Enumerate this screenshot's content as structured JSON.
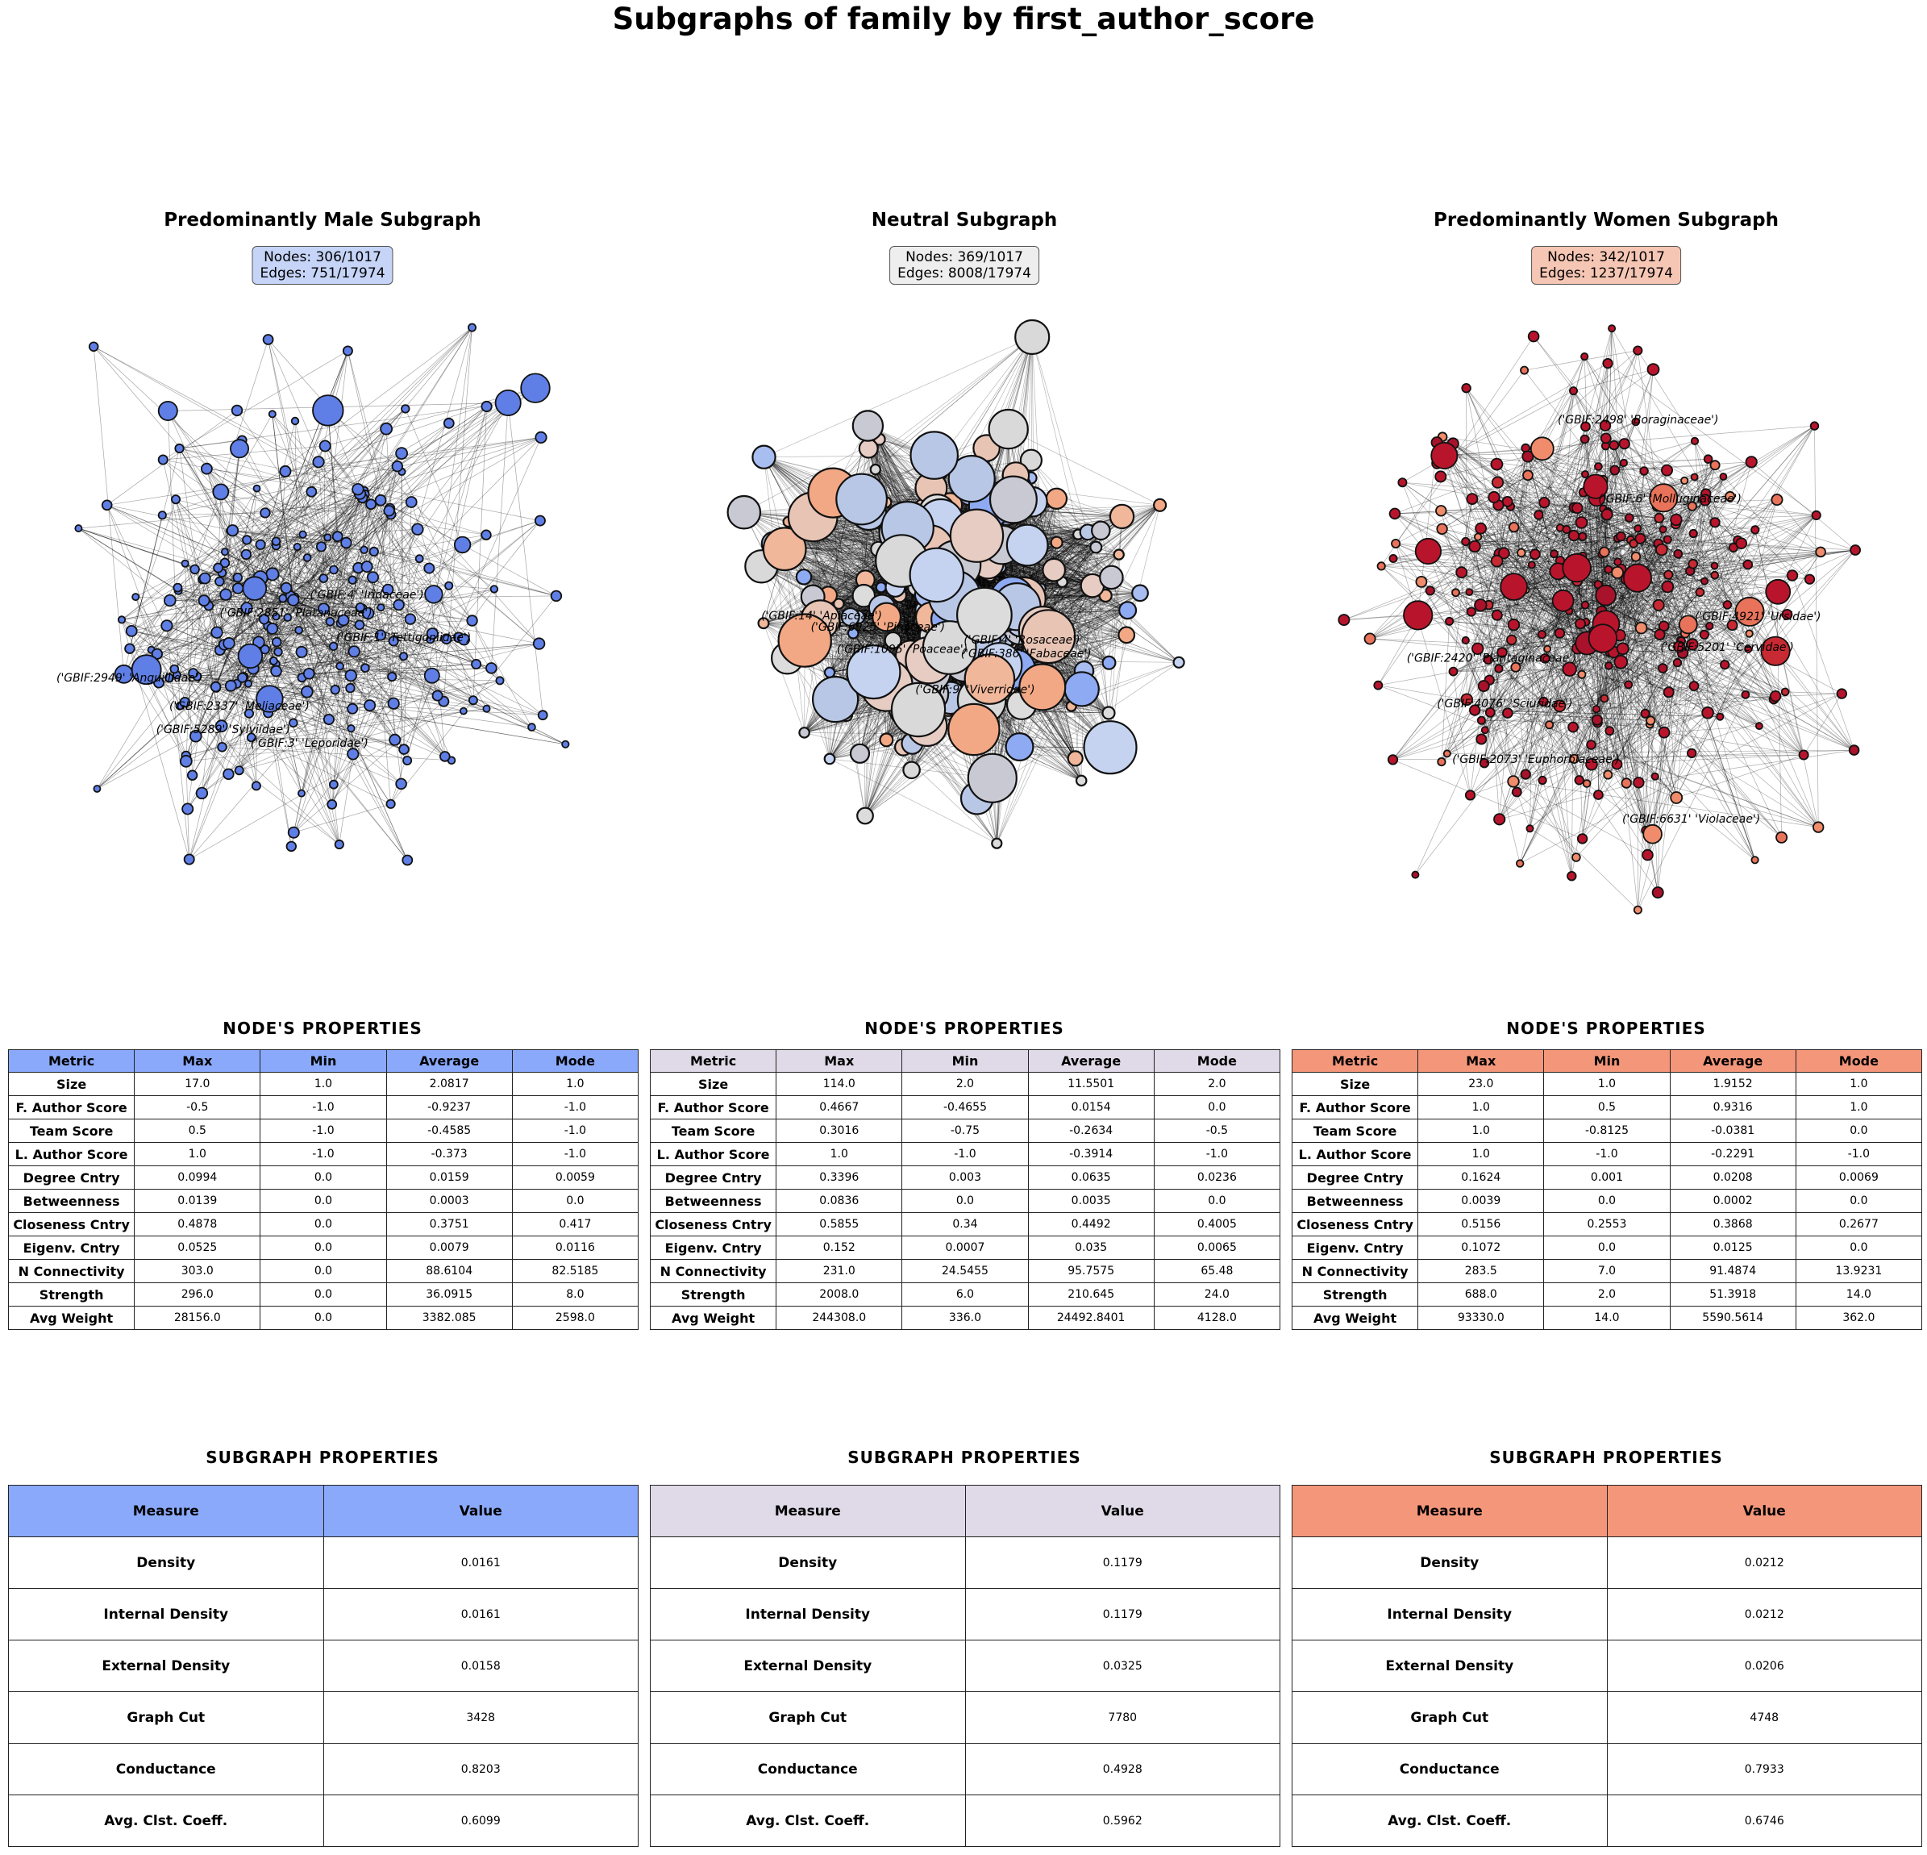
{
  "title": "Subgraphs of family by first_author_score",
  "node_props_title": "NODE'S  PROPERTIES",
  "subgraph_props_title": "SUBGRAPH  PROPERTIES",
  "node_columns": [
    "Metric",
    "Max",
    "Min",
    "Average",
    "Mode"
  ],
  "subgraph_columns": [
    "Measure",
    "Value"
  ],
  "metrics": [
    "Size",
    "F. Author Score",
    "Team Score",
    "L. Author Score",
    "Degree Cntry",
    "Betweenness",
    "Closeness Cntry",
    "Eigenv. Cntry",
    "N Connectivity",
    "Strength",
    "Avg Weight"
  ],
  "measures": [
    "Density",
    "Internal Density",
    "External Density",
    "Graph Cut",
    "Conductance",
    "Avg. Clst. Coeff."
  ],
  "panels": [
    {
      "title": "Predominantly Male Subgraph",
      "nodes_text": "Nodes: 306/1017",
      "edges_text": "Edges: 751/17974",
      "header_color": "#8aa9fb",
      "box_color": "#c5d4f7",
      "node_color": "#5f7fe6",
      "labels": [
        "('GBIF:3' 'Leporidae')",
        "('GBIF:5289' 'Sylviidae')",
        "('GBIF:4' 'Iridaceae')",
        "('GBIF:1' 'Tettigoniidae')",
        "('GBIF:2851' 'Platanaceae')",
        "('GBIF:2949' 'Anguillidae')",
        "('GBIF:2337' 'Meliaceae')"
      ],
      "node_rows": [
        [
          "17.0",
          "1.0",
          "2.0817",
          "1.0"
        ],
        [
          "-0.5",
          "-1.0",
          "-0.9237",
          "-1.0"
        ],
        [
          "0.5",
          "-1.0",
          "-0.4585",
          "-1.0"
        ],
        [
          "1.0",
          "-1.0",
          "-0.373",
          "-1.0"
        ],
        [
          "0.0994",
          "0.0",
          "0.0159",
          "0.0059"
        ],
        [
          "0.0139",
          "0.0",
          "0.0003",
          "0.0"
        ],
        [
          "0.4878",
          "0.0",
          "0.3751",
          "0.417"
        ],
        [
          "0.0525",
          "0.0",
          "0.0079",
          "0.0116"
        ],
        [
          "303.0",
          "0.0",
          "88.6104",
          "82.5185"
        ],
        [
          "296.0",
          "0.0",
          "36.0915",
          "8.0"
        ],
        [
          "28156.0",
          "0.0",
          "3382.085",
          "2598.0"
        ]
      ],
      "subgraph_values": [
        "0.0161",
        "0.0161",
        "0.0158",
        "3428",
        "0.8203",
        "0.6099"
      ]
    },
    {
      "title": "Neutral Subgraph",
      "nodes_text": "Nodes: 369/1017",
      "edges_text": "Edges: 8008/17974",
      "header_color": "#e0d9e7",
      "box_color": "#eeeeee",
      "node_color": "#d9d9d9",
      "labels": [
        "('GBIF:6925' 'Pinaceae')",
        "('GBIF:4' 'Rosaceae')",
        "('GBIF:9' 'Viverridae')",
        "('GBIF:386' 'Fabaceae')",
        "('GBIF:1095' 'Poaceae')",
        "('GBIF:14' 'Apiaceae')"
      ],
      "node_rows": [
        [
          "114.0",
          "2.0",
          "11.5501",
          "2.0"
        ],
        [
          "0.4667",
          "-0.4655",
          "0.0154",
          "0.0"
        ],
        [
          "0.3016",
          "-0.75",
          "-0.2634",
          "-0.5"
        ],
        [
          "1.0",
          "-1.0",
          "-0.3914",
          "-1.0"
        ],
        [
          "0.3396",
          "0.003",
          "0.0635",
          "0.0236"
        ],
        [
          "0.0836",
          "0.0",
          "0.0035",
          "0.0"
        ],
        [
          "0.5855",
          "0.34",
          "0.4492",
          "0.4005"
        ],
        [
          "0.152",
          "0.0007",
          "0.035",
          "0.0065"
        ],
        [
          "231.0",
          "24.5455",
          "95.7575",
          "65.48"
        ],
        [
          "2008.0",
          "6.0",
          "210.645",
          "24.0"
        ],
        [
          "244308.0",
          "336.0",
          "24492.8401",
          "4128.0"
        ]
      ],
      "subgraph_values": [
        "0.1179",
        "0.1179",
        "0.0325",
        "7780",
        "0.4928",
        "0.5962"
      ]
    },
    {
      "title": "Predominantly Women Subgraph",
      "nodes_text": "Nodes: 342/1017",
      "edges_text": "Edges: 1237/17974",
      "header_color": "#f4967a",
      "box_color": "#f6c6b4",
      "node_color": "#b8152c",
      "labels": [
        "('GBIF:2498' 'Boraginaceae')",
        "('GBIF:4921' 'Ursidae')",
        "('GBIF:2073' 'Euphorbiaceae')",
        "('GBIF:2420' 'Plantaginaceae')",
        "('GBIF:6' 'Molluginaceae')",
        "('GBIF:4076' 'Sciuridae')",
        "('GBIF:5201' 'Cervidae')",
        "('GBIF:6631' 'Violaceae')"
      ],
      "node_rows": [
        [
          "23.0",
          "1.0",
          "1.9152",
          "1.0"
        ],
        [
          "1.0",
          "0.5",
          "0.9316",
          "1.0"
        ],
        [
          "1.0",
          "-0.8125",
          "-0.0381",
          "0.0"
        ],
        [
          "1.0",
          "-1.0",
          "-0.2291",
          "-1.0"
        ],
        [
          "0.1624",
          "0.001",
          "0.0208",
          "0.0069"
        ],
        [
          "0.0039",
          "0.0",
          "0.0002",
          "0.0"
        ],
        [
          "0.5156",
          "0.2553",
          "0.3868",
          "0.2677"
        ],
        [
          "0.1072",
          "0.0",
          "0.0125",
          "0.0"
        ],
        [
          "283.5",
          "7.0",
          "91.4874",
          "13.9231"
        ],
        [
          "688.0",
          "2.0",
          "51.3918",
          "14.0"
        ],
        [
          "93330.0",
          "14.0",
          "5590.5614",
          "362.0"
        ]
      ],
      "subgraph_values": [
        "0.0212",
        "0.0212",
        "0.0206",
        "4748",
        "0.7933",
        "0.6746"
      ]
    }
  ]
}
